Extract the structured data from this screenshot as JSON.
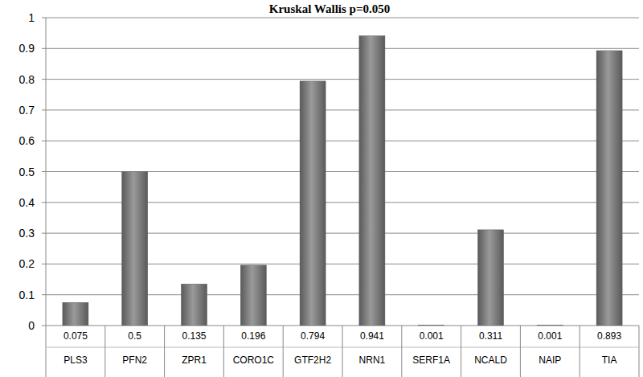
{
  "chart_data": {
    "type": "bar",
    "title": "Kruskal Wallis p=0.050",
    "categories": [
      "PLS3",
      "PFN2",
      "ZPR1",
      "CORO1C",
      "GTF2H2",
      "NRN1",
      "SERF1A",
      "NCALD",
      "NAIP",
      "TIA"
    ],
    "values": [
      0.075,
      0.5,
      0.135,
      0.196,
      0.794,
      0.941,
      0.001,
      0.311,
      0.001,
      0.893
    ],
    "color": "#5a5a5a",
    "ylim": [
      0,
      1
    ],
    "yticks": [
      0,
      0.1,
      0.2,
      0.3,
      0.4,
      0.5,
      0.6,
      0.7,
      0.8,
      0.9,
      1
    ],
    "grid": true,
    "data_labels": true
  }
}
